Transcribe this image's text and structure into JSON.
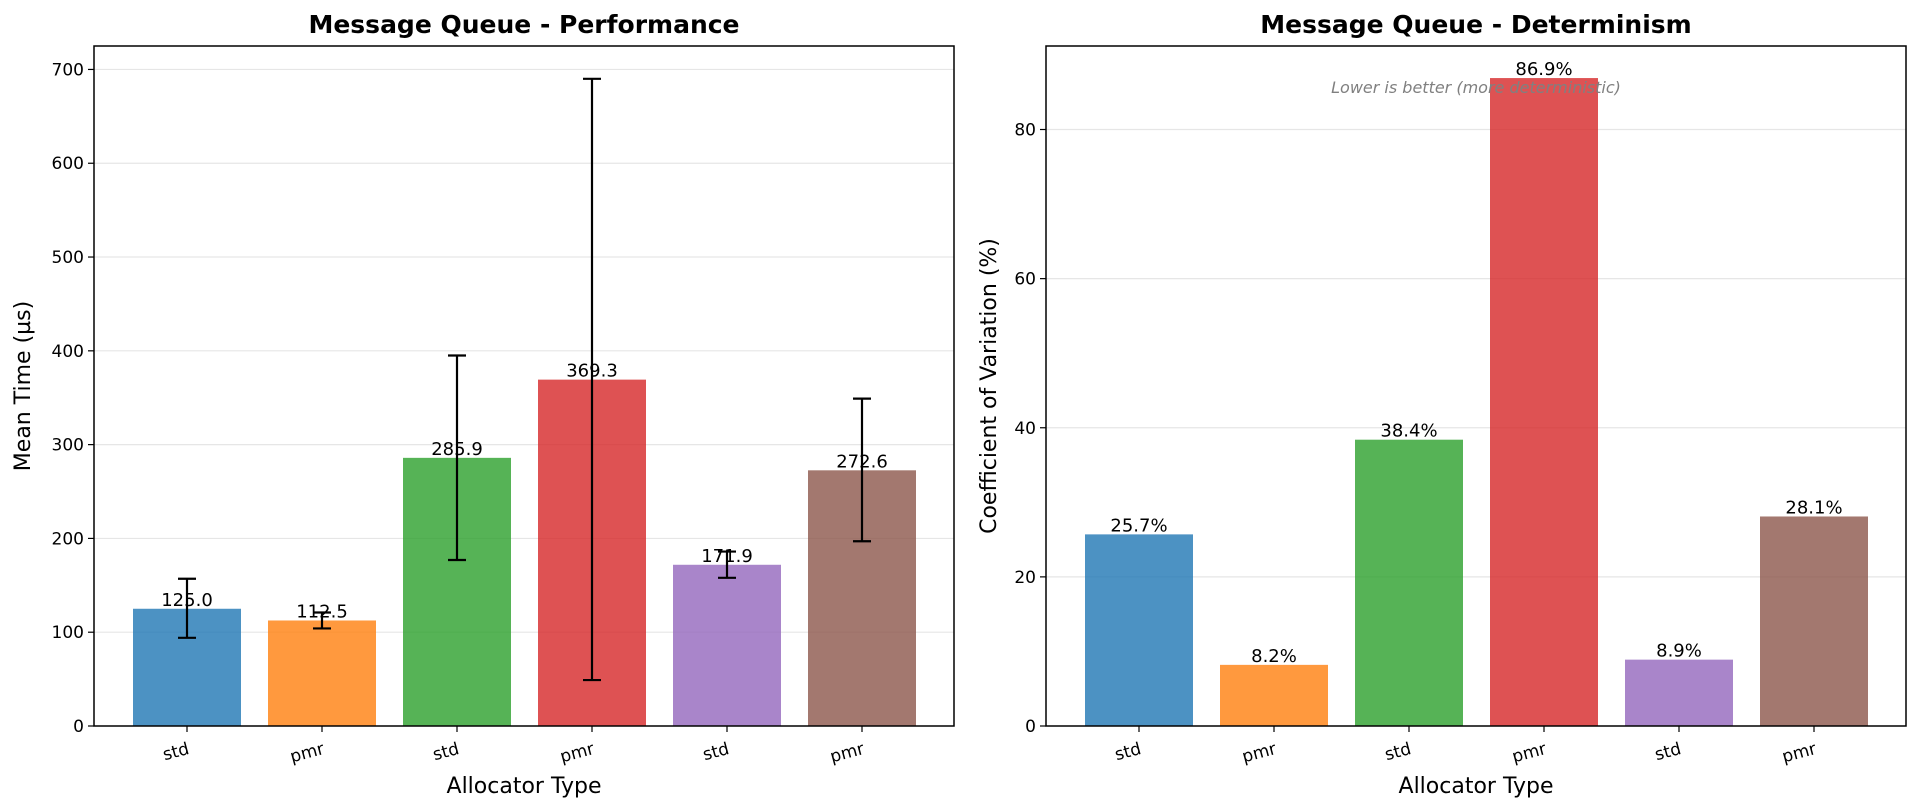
{
  "chart_data": [
    {
      "type": "bar",
      "title": "Message Queue - Performance",
      "xlabel": "Allocator Type",
      "ylabel": "Mean Time (µs)",
      "categories": [
        "std",
        "pmr",
        "std",
        "pmr",
        "std",
        "pmr"
      ],
      "values": [
        125.0,
        112.5,
        285.9,
        369.3,
        171.9,
        272.6
      ],
      "bar_labels": [
        "125.0",
        "112.5",
        "285.9",
        "369.3",
        "171.9",
        "272.6"
      ],
      "error_low": [
        94,
        104,
        177,
        49,
        158,
        197
      ],
      "error_high": [
        157,
        121,
        395,
        690,
        186,
        349
      ],
      "colors": [
        "#1f77b4",
        "#ff7f0e",
        "#2ca02c",
        "#d62728",
        "#9467bd",
        "#8c564b"
      ],
      "ylim": [
        0,
        725
      ],
      "yticks": [
        0,
        100,
        200,
        300,
        400,
        500,
        600,
        700
      ],
      "grid": true
    },
    {
      "type": "bar",
      "title": "Message Queue - Determinism",
      "xlabel": "Allocator Type",
      "ylabel": "Coefficient of Variation (%)",
      "annotation": "Lower is better (more deterministic)",
      "categories": [
        "std",
        "pmr",
        "std",
        "pmr",
        "std",
        "pmr"
      ],
      "values": [
        25.7,
        8.2,
        38.4,
        86.9,
        8.9,
        28.1
      ],
      "bar_labels": [
        "25.7%",
        "8.2%",
        "38.4%",
        "86.9%",
        "8.9%",
        "28.1%"
      ],
      "colors": [
        "#1f77b4",
        "#ff7f0e",
        "#2ca02c",
        "#d62728",
        "#9467bd",
        "#8c564b"
      ],
      "ylim": [
        0,
        91.2
      ],
      "yticks": [
        0,
        20,
        40,
        60,
        80
      ],
      "grid": true
    }
  ]
}
